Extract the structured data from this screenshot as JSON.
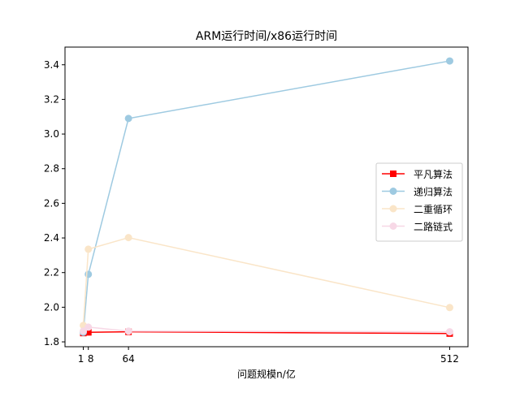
{
  "chart_data": {
    "type": "line",
    "title": "ARM运行时间/x86运行时间",
    "xlabel": "问题规模n/亿",
    "ylabel": "",
    "x": [
      1,
      8,
      64,
      512
    ],
    "xticks": [
      {
        "value": 1,
        "label": "1"
      },
      {
        "value": 8,
        "label": "8"
      },
      {
        "value": 64,
        "label": "64"
      },
      {
        "value": 512,
        "label": "512"
      }
    ],
    "yticks": [
      1.8,
      2.0,
      2.2,
      2.4,
      2.6,
      2.8,
      3.0,
      3.2,
      3.4
    ],
    "ytick_labels": [
      "1.8",
      "2.0",
      "2.2",
      "2.4",
      "2.6",
      "2.8",
      "3.0",
      "3.2",
      "3.4"
    ],
    "xlim": [
      -24.55,
      537.55
    ],
    "ylim": [
      1.772,
      3.502
    ],
    "grid": false,
    "legend_position": "center-right",
    "series": [
      {
        "name": "平凡算法",
        "color": "#ff0000",
        "marker": "square",
        "values": [
          1.851,
          1.855,
          1.858,
          1.848
        ]
      },
      {
        "name": "递归算法",
        "color": "#9ecae1",
        "marker": "circle",
        "values": [
          1.855,
          2.19,
          3.09,
          3.422
        ]
      },
      {
        "name": "二重循环",
        "color": "#fae5c8",
        "marker": "circle",
        "values": [
          1.895,
          2.335,
          2.402,
          1.998
        ]
      },
      {
        "name": "二路链式",
        "color": "#f7d8e6",
        "marker": "circle",
        "values": [
          1.862,
          1.885,
          1.862,
          1.858
        ]
      }
    ]
  }
}
